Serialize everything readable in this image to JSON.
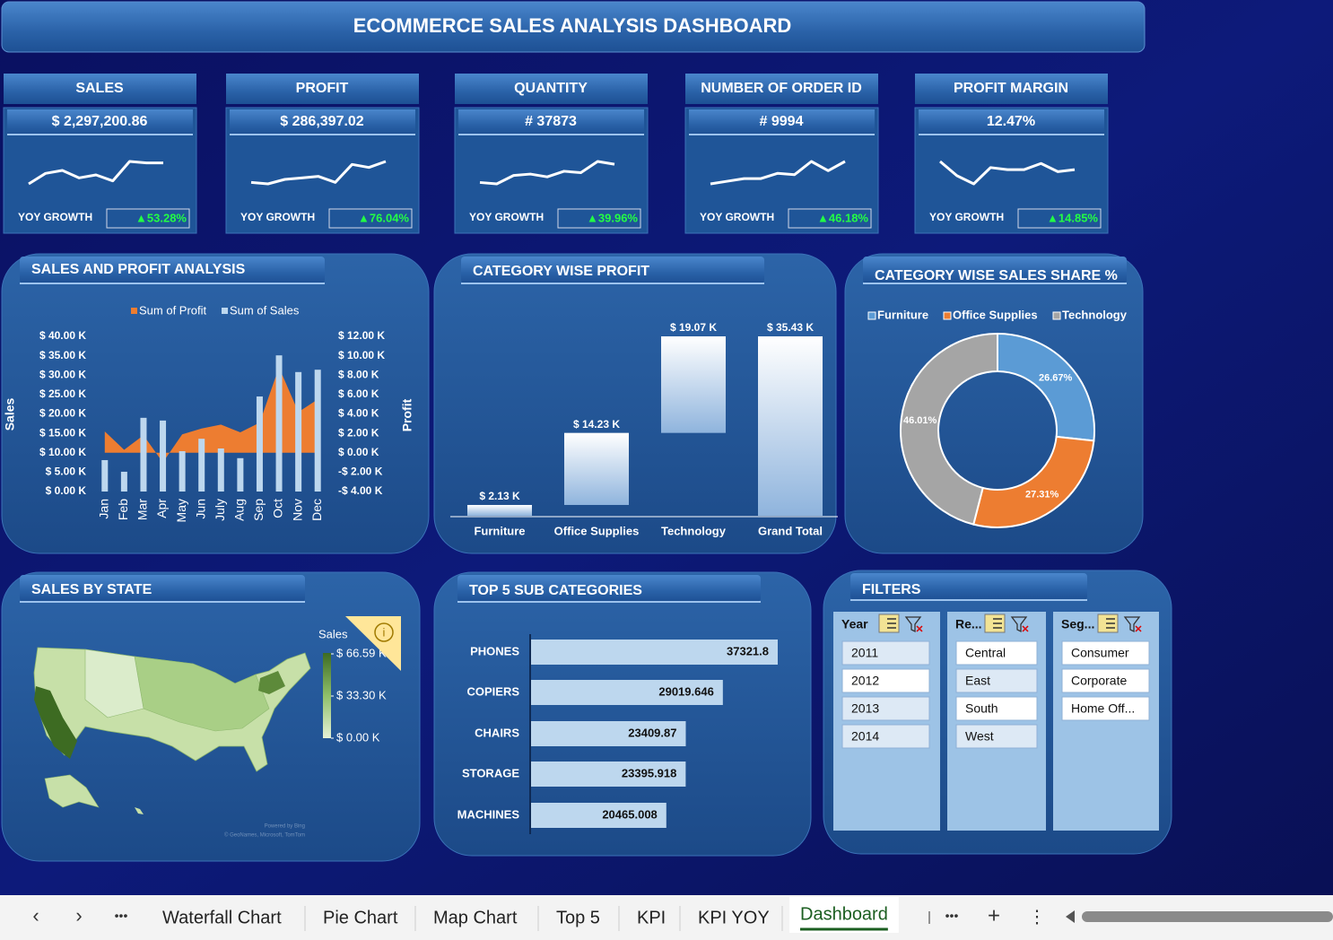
{
  "header": {
    "title": "ECOMMERCE SALES ANALYSIS DASHBOARD"
  },
  "kpis": [
    {
      "title": "SALES",
      "value": "$ 2,297,200.86",
      "trend": [
        5,
        12,
        14,
        9,
        11,
        7,
        20,
        19,
        19
      ],
      "yoy_label": "YOY GROWTH",
      "growth": "▲53.28%"
    },
    {
      "title": "PROFIT",
      "value": "$ 286,397.02",
      "trend": [
        5,
        4,
        7,
        8,
        9,
        5,
        17,
        15,
        19
      ],
      "yoy_label": "YOY GROWTH",
      "growth": "▲76.04%"
    },
    {
      "title": "QUANTITY",
      "value": "# 37873",
      "trend": [
        4,
        3,
        9,
        10,
        8,
        12,
        11,
        19,
        17
      ],
      "yoy_label": "YOY GROWTH",
      "growth": "▲39.96%"
    },
    {
      "title": "NUMBER OF ORDER ID",
      "value": "# 9994",
      "trend": [
        7,
        9,
        11,
        11,
        15,
        14,
        24,
        17,
        24
      ],
      "yoy_label": "YOY GROWTH",
      "growth": "▲46.18%"
    },
    {
      "title": "PROFIT MARGIN",
      "value": "12.47%",
      "trend": [
        29,
        22,
        18,
        26,
        25,
        25,
        28,
        24,
        25
      ],
      "yoy_label": "YOY GROWTH",
      "growth": "▲14.85%"
    }
  ],
  "chart_data": [
    {
      "type": "combo",
      "title": "SALES AND PROFIT ANALYSIS",
      "categories": [
        "Jan",
        "Feb",
        "Mar",
        "Apr",
        "May",
        "Jun",
        "July",
        "Aug",
        "Sep",
        "Oct",
        "Nov",
        "Dec"
      ],
      "series": [
        {
          "name": "Sum of Profit",
          "kind": "area",
          "axis": "y2",
          "color": "#ed7d31",
          "values": [
            2200,
            300,
            1800,
            -1000,
            1900,
            2500,
            2900,
            2100,
            3100,
            8800,
            4200,
            5500
          ]
        },
        {
          "name": "Sum of Sales",
          "kind": "bar",
          "color": "#bdd7ee",
          "values": [
            8100,
            5100,
            19000,
            18300,
            10400,
            13600,
            11100,
            8600,
            24500,
            35100,
            30800,
            31400
          ]
        }
      ],
      "legend": "top",
      "ylabel": "Sales",
      "y2label": "Profit",
      "ylim": [
        0,
        40000
      ],
      "yticks": [
        {
          "value": 0,
          "label": "$ 0.00 K"
        },
        {
          "value": 5000,
          "label": "$ 5.00 K"
        },
        {
          "value": 10000,
          "label": "$ 10.00 K"
        },
        {
          "value": 15000,
          "label": "$ 15.00 K"
        },
        {
          "value": 20000,
          "label": "$ 20.00 K"
        },
        {
          "value": 25000,
          "label": "$ 25.00 K"
        },
        {
          "value": 30000,
          "label": "$ 30.00 K"
        },
        {
          "value": 35000,
          "label": "$ 35.00 K"
        },
        {
          "value": 40000,
          "label": "$ 40.00 K"
        }
      ],
      "y2lim": [
        -4000,
        12000
      ],
      "y2ticks": [
        {
          "value": -4000,
          "label": "-$ 4.00 K"
        },
        {
          "value": -2000,
          "label": "-$ 2.00 K"
        },
        {
          "value": 0,
          "label": "$ 0.00 K"
        },
        {
          "value": 2000,
          "label": "$ 2.00 K"
        },
        {
          "value": 4000,
          "label": "$ 4.00 K"
        },
        {
          "value": 6000,
          "label": "$ 6.00 K"
        },
        {
          "value": 8000,
          "label": "$ 8.00 K"
        },
        {
          "value": 10000,
          "label": "$ 10.00 K"
        },
        {
          "value": 12000,
          "label": "$ 12.00 K"
        }
      ]
    },
    {
      "type": "waterfall",
      "title": "CATEGORY WISE PROFIT",
      "categories": [
        "Furniture",
        "Office Supplies",
        "Technology",
        "Grand Total"
      ],
      "values": [
        2.13,
        14.23,
        19.07,
        35.43
      ],
      "value_labels": [
        "$ 2.13 K",
        "$ 14.23 K",
        "$ 19.07 K",
        "$ 35.43 K"
      ],
      "last_is_total": true,
      "color": "#dce9f7"
    },
    {
      "type": "donut",
      "title": "CATEGORY WISE SALES SHARE %",
      "categories": [
        "Furniture",
        "Office Supplies",
        "Technology"
      ],
      "values": [
        26.67,
        27.31,
        46.01
      ],
      "value_labels": [
        "26.67%",
        "27.31%",
        "46.01%"
      ],
      "colors": [
        "#5b9bd5",
        "#ed7d31",
        "#a5a5a5"
      ],
      "legend": "top"
    },
    {
      "type": "map",
      "title": "SALES BY STATE",
      "legend_title": "Sales",
      "legend_ticks": [
        {
          "value": 66590,
          "label": "$ 66.59 K"
        },
        {
          "value": 33300,
          "label": "$ 33.30 K"
        },
        {
          "value": 0,
          "label": "$ 0.00 K"
        }
      ],
      "credits": [
        "Powered by Bing",
        "© GeoNames, Microsoft, TomTom"
      ]
    },
    {
      "type": "hbar",
      "title": "TOP 5 SUB CATEGORIES",
      "categories": [
        "PHONES",
        "COPIERS",
        "CHAIRS",
        "STORAGE",
        "MACHINES"
      ],
      "values": [
        37321.8,
        29019.646,
        23409.87,
        23395.918,
        20465.008
      ],
      "color": "#bdd7ee"
    }
  ],
  "filters": {
    "title": "FILTERS",
    "slicers": [
      {
        "title": "Year",
        "items": [
          "2011",
          "2012",
          "2013",
          "2014"
        ]
      },
      {
        "title": "Re...",
        "items": [
          "Central",
          "East",
          "South",
          "West"
        ]
      },
      {
        "title": "Seg...",
        "items": [
          "Consumer",
          "Corporate",
          "Home Off..."
        ]
      }
    ]
  },
  "tabs": [
    "Waterfall Chart",
    "Pie Chart",
    "Map Chart",
    "Top 5",
    "KPI",
    "KPI YOY",
    "Dashboard"
  ],
  "active_tab": 6
}
